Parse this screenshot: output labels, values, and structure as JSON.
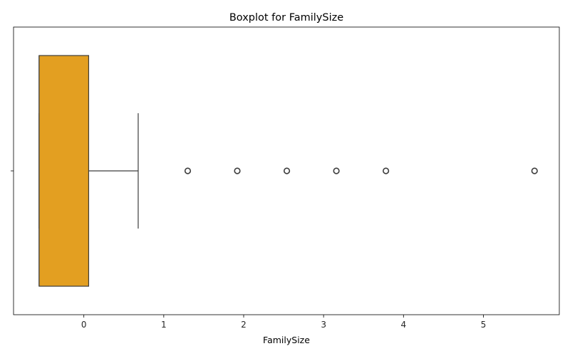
{
  "chart_data": {
    "type": "box",
    "title": "Boxplot for FamilySize",
    "xlabel": "FamilySize",
    "ylabel": "",
    "xlim": [
      -0.88,
      5.95
    ],
    "xticks": [
      0,
      1,
      2,
      3,
      4,
      5
    ],
    "xtick_labels": [
      "0",
      "1",
      "2",
      "3",
      "4",
      "5"
    ],
    "grid": false,
    "box": {
      "whisker_low": -0.56,
      "q1": -0.56,
      "median": -0.56,
      "q3": 0.06,
      "whisker_high": 0.68,
      "fill_color": "#e39f21",
      "edge_color": "#3d3d3d"
    },
    "outliers": [
      1.3,
      1.92,
      2.54,
      3.16,
      3.78,
      5.64
    ]
  }
}
